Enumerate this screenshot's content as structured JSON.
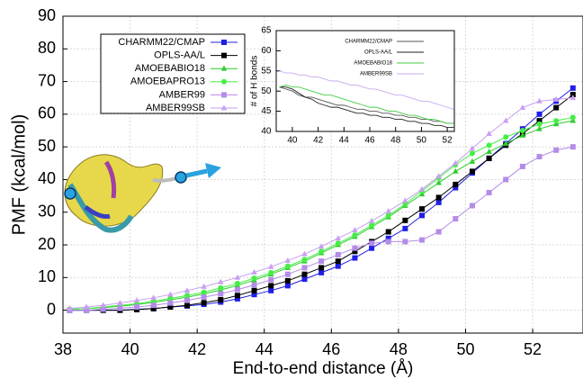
{
  "chart_data": [
    {
      "type": "line",
      "xlabel": "End-to-end distance (Å)",
      "ylabel": "PMF (kcal/mol)",
      "x": [
        38.2,
        38.7,
        39.2,
        39.7,
        40.2,
        40.7,
        41.2,
        41.7,
        42.2,
        42.7,
        43.2,
        43.7,
        44.2,
        44.7,
        45.2,
        45.7,
        46.2,
        46.7,
        47.2,
        47.7,
        48.2,
        48.7,
        49.2,
        49.7,
        50.2,
        50.7,
        51.2,
        51.7,
        52.2,
        52.7,
        53.2
      ],
      "xlim": [
        38,
        53.5
      ],
      "ylim": [
        -7,
        90
      ],
      "xticks": [
        38,
        40,
        42,
        44,
        46,
        48,
        50,
        52
      ],
      "yticks": [
        0,
        10,
        20,
        30,
        40,
        50,
        60,
        70,
        80,
        90
      ],
      "grid": true,
      "series": [
        {
          "name": "CHARMM22/CMAP",
          "color": "#1f1fe6",
          "marker": "square",
          "values": [
            0,
            0,
            0,
            0,
            0.3,
            0.5,
            1,
            1.3,
            1.8,
            2.5,
            3.5,
            4.8,
            6,
            7.5,
            9.5,
            11.5,
            13.5,
            16,
            19,
            22,
            25,
            29,
            33,
            37.5,
            42,
            46.5,
            51,
            55.5,
            60,
            64,
            68
          ]
        },
        {
          "name": "OPLS-AA/L",
          "color": "#000000",
          "marker": "square",
          "values": [
            0,
            0,
            0,
            0,
            0.2,
            0.5,
            1,
            1.5,
            2.3,
            3.2,
            4.5,
            6,
            7.5,
            9,
            11,
            13,
            15,
            18,
            21,
            24,
            27.5,
            31,
            34.5,
            38.5,
            42.5,
            46.5,
            50.5,
            54,
            58,
            62,
            66
          ]
        },
        {
          "name": "AMOEBABIO18",
          "color": "#2ecc2e",
          "marker": "triangle",
          "values": [
            0.3,
            0.5,
            0.8,
            1.2,
            1.7,
            2.4,
            3.2,
            4,
            5,
            6.2,
            7.6,
            9.2,
            11,
            13,
            15,
            17.5,
            20,
            22.5,
            25.5,
            28.5,
            32,
            35.5,
            39,
            42.5,
            45.5,
            48.5,
            51,
            53.5,
            55.5,
            57,
            58
          ]
        },
        {
          "name": "AMOEBAPRO13",
          "color": "#44ee44",
          "marker": "circle",
          "values": [
            0.3,
            0.5,
            1,
            1.5,
            2,
            2.8,
            3.6,
            4.5,
            5.5,
            6.8,
            8.2,
            9.8,
            11.5,
            13.5,
            15.5,
            18,
            20.5,
            23,
            26,
            29,
            32.5,
            36.5,
            40.5,
            44.5,
            48,
            50.5,
            53,
            55,
            57,
            58,
            59
          ]
        },
        {
          "name": "AMBER99",
          "color": "#b48ce8",
          "marker": "square",
          "values": [
            0,
            0,
            0.3,
            0.6,
            1,
            1.5,
            2.2,
            3,
            4,
            5,
            6.3,
            7.7,
            9.3,
            11,
            13,
            15,
            17,
            19,
            20.5,
            21,
            21,
            21.5,
            24,
            28,
            32,
            36,
            40,
            44,
            47,
            49,
            50
          ]
        },
        {
          "name": "AMBER99SB",
          "color": "#c8a0f0",
          "marker": "triangle",
          "values": [
            0.5,
            1,
            1.5,
            2.2,
            3,
            3.8,
            4.8,
            6,
            7.2,
            8.6,
            10,
            11.6,
            13.3,
            15.2,
            17.2,
            19.5,
            22,
            24.5,
            27.3,
            30.3,
            33.5,
            37,
            41,
            45,
            49.5,
            54,
            58,
            62,
            64,
            64.5,
            65
          ]
        }
      ]
    },
    {
      "type": "line",
      "ylabel": "# of H bonds",
      "x": [
        39,
        39.5,
        40,
        40.5,
        41,
        41.5,
        42,
        42.5,
        43,
        43.5,
        44,
        44.5,
        45,
        45.5,
        46,
        46.5,
        47,
        47.5,
        48,
        48.5,
        49,
        49.5,
        50,
        50.5,
        51,
        51.5,
        52,
        52.5
      ],
      "xlim": [
        38.75,
        52.55
      ],
      "ylim": [
        40,
        65
      ],
      "xticks": [
        40,
        42,
        44,
        46,
        48,
        50,
        52
      ],
      "yticks": [
        40,
        45,
        50,
        55,
        60,
        65
      ],
      "series": [
        {
          "name": "CHARMM22/CMAP",
          "color": "#555555",
          "values": [
            51,
            50.5,
            50,
            49,
            48.5,
            48.5,
            48,
            47.5,
            47,
            46.5,
            46.5,
            46,
            45.5,
            45.5,
            45,
            45,
            44.5,
            44.5,
            44,
            44,
            43.5,
            43.5,
            43,
            43,
            42.5,
            42.5,
            42,
            42
          ]
        },
        {
          "name": "OPLS-AA/L",
          "color": "#222222",
          "values": [
            51,
            51,
            50.5,
            49.5,
            48.5,
            48,
            47,
            46.5,
            46,
            46,
            45.5,
            45,
            44.5,
            44.5,
            44,
            44,
            43.5,
            43.5,
            43,
            43,
            42.5,
            42.5,
            42,
            42,
            41.5,
            41.5,
            41,
            41
          ]
        },
        {
          "name": "AMOEBABIO18",
          "color": "#44cc44",
          "values": [
            51,
            51.5,
            51,
            51,
            50.5,
            50,
            49.5,
            49,
            49,
            48.5,
            48,
            47.5,
            47,
            46.5,
            46,
            46,
            45.5,
            45,
            45,
            44.5,
            44,
            44,
            43.5,
            43,
            43,
            42.5,
            42,
            42
          ]
        },
        {
          "name": "AMBER99SB",
          "color": "#c8a8f0",
          "values": [
            55,
            54.5,
            54.5,
            54,
            54,
            53.5,
            53.5,
            53,
            52.5,
            52.5,
            52,
            51.5,
            51.5,
            51,
            50.5,
            50.5,
            50,
            49.5,
            49,
            49,
            48.5,
            48,
            47.5,
            47.5,
            47,
            46.5,
            46,
            45.5
          ]
        }
      ]
    }
  ]
}
